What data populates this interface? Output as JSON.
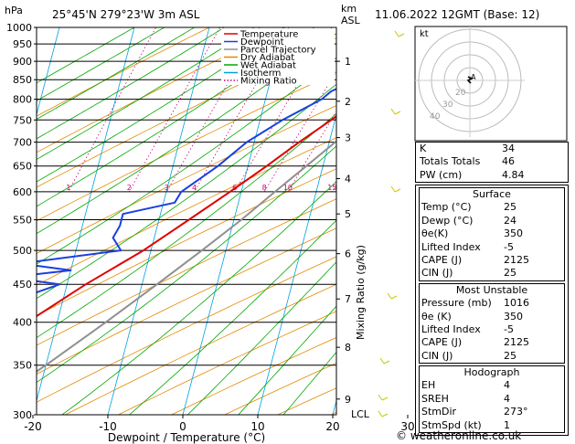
{
  "header": {
    "location": "25°45'N  279°23'W  3m  ASL",
    "datetime": "11.06.2022  12GMT  (Base: 12)",
    "left_axis_unit": "hPa",
    "right_axis_unit_km": "km",
    "right_axis_unit_asl": "ASL",
    "mixing_ratio_label": "Mixing Ratio (g/kg)",
    "lcl_label": "LCL",
    "credit": "© weatheronline.co.uk"
  },
  "colors": {
    "temperature": "#e00000",
    "dewpoint": "#1a3fe0",
    "parcel": "#909090",
    "dry_adiabat": "#e08a00",
    "wet_adiabat": "#00a800",
    "isotherm": "#00a0e0",
    "mixing_ratio": "#d0007a"
  },
  "chart_data": {
    "type": "line",
    "xlabel": "Dewpoint / Temperature (°C)",
    "ylabel": "hPa",
    "xlim": [
      -35,
      40
    ],
    "ylim": [
      1000,
      300
    ],
    "pressure_ticks": [
      300,
      350,
      400,
      450,
      500,
      550,
      600,
      650,
      700,
      750,
      800,
      850,
      900,
      950,
      1000
    ],
    "temperature_ticks": [
      -30,
      -20,
      -10,
      0,
      10,
      20,
      30,
      40
    ],
    "km_ticks": [
      {
        "label": "1",
        "p": 900
      },
      {
        "label": "2",
        "p": 795
      },
      {
        "label": "3",
        "p": 710
      },
      {
        "label": "4",
        "p": 625
      },
      {
        "label": "5",
        "p": 560
      },
      {
        "label": "6",
        "p": 495
      },
      {
        "label": "7",
        "p": 430
      },
      {
        "label": "8",
        "p": 370
      },
      {
        "label": "9",
        "p": 315
      }
    ],
    "mixing_ratio_lines": [
      1,
      2,
      3,
      4,
      6,
      8,
      10,
      15,
      20,
      25
    ],
    "mixing_ratio_labels": [
      "1",
      "2",
      "3",
      "4",
      "6",
      "8",
      "10",
      "15",
      "20",
      "25"
    ],
    "legend": [
      {
        "name": "Temperature",
        "key": "temperature"
      },
      {
        "name": "Dewpoint",
        "key": "dewpoint"
      },
      {
        "name": "Parcel Trajectory",
        "key": "parcel"
      },
      {
        "name": "Dry Adiabat",
        "key": "dry_adiabat"
      },
      {
        "name": "Wet Adiabat",
        "key": "wet_adiabat"
      },
      {
        "name": "Isotherm",
        "key": "isotherm"
      },
      {
        "name": "Mixing Ratio",
        "key": "mixing_ratio"
      }
    ],
    "series": [
      {
        "name": "Temperature",
        "p": [
          1016,
          950,
          900,
          850,
          800,
          750,
          700,
          650,
          600,
          550,
          500,
          450,
          400,
          350,
          300
        ],
        "t": [
          25,
          21.5,
          18.5,
          15.5,
          12.5,
          9.5,
          6,
          2.5,
          -1.5,
          -6,
          -11,
          -17.5,
          -24,
          -32,
          -41
        ]
      },
      {
        "name": "Dewpoint",
        "p": [
          1016,
          950,
          900,
          850,
          820,
          800,
          750,
          700,
          650,
          600,
          580,
          560,
          540,
          520,
          500,
          480,
          470,
          460,
          450,
          430,
          400,
          380,
          350,
          330,
          300
        ],
        "t": [
          24,
          18.5,
          16,
          11.5,
          8.5,
          7.5,
          3,
          -1,
          -4,
          -8,
          -8.5,
          -15,
          -15,
          -15.5,
          -14,
          -27,
          -20,
          -28,
          -21,
          -26,
          -24,
          -35,
          -40,
          -43,
          -51
        ]
      },
      {
        "name": "Parcel Trajectory",
        "p": [
          1016,
          950,
          900,
          850,
          800,
          750,
          700,
          650,
          600,
          550,
          500,
          450,
          400,
          350,
          300
        ],
        "t": [
          25,
          22.5,
          20.5,
          18.2,
          16,
          13.5,
          10.8,
          7.8,
          4.5,
          1,
          -3.2,
          -8,
          -13.5,
          -20,
          -28
        ]
      }
    ]
  },
  "hodograph": {
    "unit_label": "kt",
    "ring_labels": [
      "20",
      "30",
      "40"
    ],
    "point_label": "A"
  },
  "indices": {
    "rows": [
      {
        "label": "K",
        "value": "34"
      },
      {
        "label": "Totals Totals",
        "value": "46"
      },
      {
        "label": "PW (cm)",
        "value": "4.84"
      }
    ]
  },
  "surface": {
    "title": "Surface",
    "rows": [
      {
        "label": "Temp (°C)",
        "value": "25"
      },
      {
        "label": "Dewp (°C)",
        "value": "24"
      },
      {
        "label": "θe(K)",
        "value": "350"
      },
      {
        "label": "Lifted Index",
        "value": "-5"
      },
      {
        "label": "CAPE (J)",
        "value": "2125"
      },
      {
        "label": "CIN (J)",
        "value": "25"
      }
    ]
  },
  "most_unstable": {
    "title": "Most Unstable",
    "rows": [
      {
        "label": "Pressure (mb)",
        "value": "1016"
      },
      {
        "label": "θe (K)",
        "value": "350"
      },
      {
        "label": "Lifted Index",
        "value": "-5"
      },
      {
        "label": "CAPE (J)",
        "value": "2125"
      },
      {
        "label": "CIN (J)",
        "value": "25"
      }
    ]
  },
  "hodograph_table": {
    "title": "Hodograph",
    "rows": [
      {
        "label": "EH",
        "value": "4"
      },
      {
        "label": "SREH",
        "value": "4"
      },
      {
        "label": "StmDir",
        "value": "273°"
      },
      {
        "label": "StmSpd (kt)",
        "value": "1"
      }
    ]
  }
}
